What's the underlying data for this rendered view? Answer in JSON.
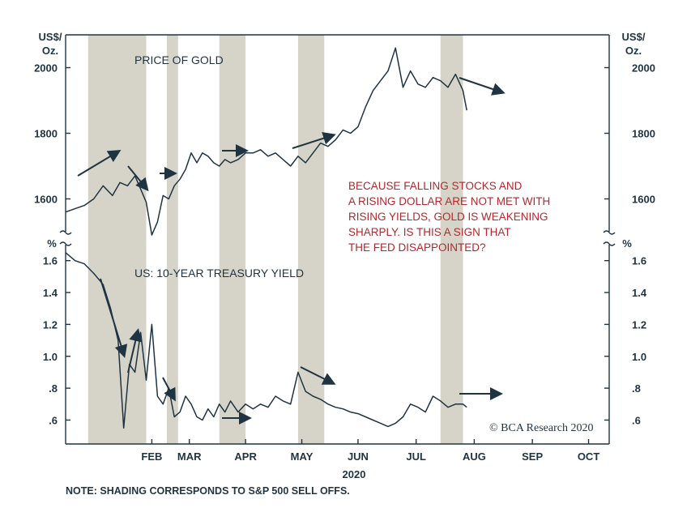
{
  "chart_data": [
    {
      "type": "line",
      "title": "PRICE OF GOLD",
      "y_unit_left": [
        "US$/",
        "Oz."
      ],
      "y_unit_right": [
        "US$/",
        "Oz."
      ],
      "ylim": [
        1500,
        2100
      ],
      "yticks": [
        1600,
        1800,
        2000
      ],
      "ytick_labels": [
        "1600",
        "1800",
        "2000"
      ],
      "series": [
        {
          "x": [
            0,
            5,
            10,
            15,
            20,
            25,
            29,
            33,
            37,
            40,
            43,
            46,
            49,
            52,
            55,
            58,
            61,
            64,
            67,
            70,
            73,
            76,
            79,
            82,
            85,
            88,
            92,
            96,
            100,
            104,
            108,
            112,
            116,
            120,
            124,
            128,
            132,
            136,
            140,
            144,
            148,
            152,
            156,
            160,
            164,
            168,
            172,
            176,
            180,
            184,
            188,
            192,
            196,
            200,
            204,
            208,
            212,
            214
          ],
          "values": [
            1560,
            1570,
            1580,
            1600,
            1640,
            1610,
            1650,
            1640,
            1670,
            1630,
            1590,
            1490,
            1530,
            1610,
            1600,
            1640,
            1660,
            1690,
            1740,
            1710,
            1740,
            1730,
            1710,
            1700,
            1720,
            1710,
            1720,
            1740,
            1740,
            1750,
            1730,
            1740,
            1720,
            1700,
            1730,
            1710,
            1740,
            1770,
            1760,
            1780,
            1810,
            1800,
            1820,
            1880,
            1930,
            1960,
            1990,
            2060,
            1940,
            1990,
            1950,
            1940,
            1970,
            1960,
            1940,
            1980,
            1930,
            1870
          ]
        }
      ]
    },
    {
      "type": "line",
      "title": "US: 10-YEAR TREASURY YIELD",
      "y_unit_left": "%",
      "y_unit_right": "%",
      "ylim": [
        0.45,
        1.7
      ],
      "yticks": [
        0.6,
        0.8,
        1.0,
        1.2,
        1.4,
        1.6
      ],
      "ytick_labels": [
        ".6",
        ".8",
        "1.0",
        "1.2",
        "1.4",
        "1.6"
      ],
      "series": [
        {
          "x": [
            0,
            5,
            10,
            15,
            20,
            24,
            28,
            31,
            34,
            37,
            40,
            43,
            46,
            49,
            52,
            55,
            58,
            61,
            64,
            67,
            70,
            73,
            76,
            79,
            82,
            85,
            88,
            92,
            96,
            100,
            104,
            108,
            112,
            116,
            120,
            124,
            128,
            132,
            136,
            140,
            144,
            148,
            152,
            156,
            160,
            164,
            168,
            172,
            176,
            180,
            184,
            188,
            192,
            196,
            200,
            204,
            208,
            212,
            214
          ],
          "values": [
            1.65,
            1.6,
            1.58,
            1.52,
            1.45,
            1.3,
            1.1,
            0.55,
            0.95,
            0.9,
            1.15,
            0.85,
            1.2,
            0.75,
            0.7,
            0.8,
            0.62,
            0.65,
            0.75,
            0.7,
            0.62,
            0.6,
            0.67,
            0.62,
            0.7,
            0.65,
            0.72,
            0.65,
            0.7,
            0.67,
            0.7,
            0.68,
            0.75,
            0.72,
            0.7,
            0.9,
            0.78,
            0.75,
            0.73,
            0.7,
            0.68,
            0.67,
            0.65,
            0.64,
            0.62,
            0.6,
            0.58,
            0.56,
            0.58,
            0.62,
            0.7,
            0.68,
            0.65,
            0.75,
            0.72,
            0.68,
            0.7,
            0.7,
            0.68
          ]
        }
      ]
    }
  ],
  "x_axis": {
    "domain": [
      0,
      290
    ],
    "months": [
      {
        "label": "FEB",
        "x": 46
      },
      {
        "label": "MAR",
        "x": 66
      },
      {
        "label": "APR",
        "x": 96
      },
      {
        "label": "MAY",
        "x": 126
      },
      {
        "label": "JUN",
        "x": 156
      },
      {
        "label": "JUL",
        "x": 187
      },
      {
        "label": "AUG",
        "x": 218
      },
      {
        "label": "SEP",
        "x": 249
      },
      {
        "label": "OCT",
        "x": 279
      }
    ],
    "year_label": "2020"
  },
  "shading": [
    [
      12,
      43
    ],
    [
      54,
      60
    ],
    [
      82,
      96
    ],
    [
      124,
      138
    ],
    [
      200,
      212
    ]
  ],
  "annotation": [
    "BECAUSE FALLING STOCKS AND",
    "A RISING DOLLAR ARE NOT MET WITH",
    "RISING YIELDS, GOLD IS WEAKENING",
    "SHARPLY. IS THIS A SIGN THAT",
    "THE FED DISAPPOINTED?"
  ],
  "credit": "© BCA Research 2020",
  "note": "NOTE: SHADING CORRESPONDS TO S&P 500 SELL OFFS.",
  "colors": {
    "line": "#1f3442",
    "shade": "#d6d4c8",
    "annotation": "#b5272b",
    "text": "#1f3442"
  }
}
